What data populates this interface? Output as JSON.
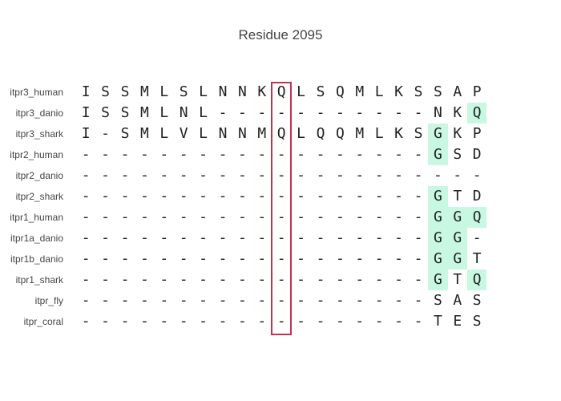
{
  "title": "Residue 2095",
  "highlight_color": "#c8f7e2",
  "box_color": "#c0334f",
  "highlighted_column": 10,
  "sequences": [
    {
      "name": "itpr3_human",
      "residues": [
        "I",
        "S",
        "S",
        "M",
        "L",
        "S",
        "L",
        "N",
        "N",
        "K",
        "Q",
        "L",
        "S",
        "Q",
        "M",
        "L",
        "K",
        "S",
        "S",
        "A",
        "P"
      ],
      "highlight": []
    },
    {
      "name": "itpr3_danio",
      "residues": [
        "I",
        "S",
        "S",
        "M",
        "L",
        "N",
        "L",
        "-",
        "-",
        "-",
        "-",
        "-",
        "-",
        "-",
        "-",
        "-",
        "-",
        "-",
        "N",
        "K",
        "Q"
      ],
      "highlight": [
        20
      ]
    },
    {
      "name": "itpr3_shark",
      "residues": [
        "I",
        "-",
        "S",
        "M",
        "L",
        "V",
        "L",
        "N",
        "N",
        "M",
        "Q",
        "L",
        "Q",
        "Q",
        "M",
        "L",
        "K",
        "S",
        "G",
        "K",
        "P"
      ],
      "highlight": [
        18
      ]
    },
    {
      "name": "itpr2_human",
      "residues": [
        "-",
        "-",
        "-",
        "-",
        "-",
        "-",
        "-",
        "-",
        "-",
        "-",
        "-",
        "-",
        "-",
        "-",
        "-",
        "-",
        "-",
        "-",
        "G",
        "S",
        "D"
      ],
      "highlight": [
        18
      ]
    },
    {
      "name": "itpr2_danio",
      "residues": [
        "-",
        "-",
        "-",
        "-",
        "-",
        "-",
        "-",
        "-",
        "-",
        "-",
        "-",
        "-",
        "-",
        "-",
        "-",
        "-",
        "-",
        "-",
        "-",
        "-",
        "-"
      ],
      "highlight": []
    },
    {
      "name": "itpr2_shark",
      "residues": [
        "-",
        "-",
        "-",
        "-",
        "-",
        "-",
        "-",
        "-",
        "-",
        "-",
        "-",
        "-",
        "-",
        "-",
        "-",
        "-",
        "-",
        "-",
        "G",
        "T",
        "D"
      ],
      "highlight": [
        18
      ]
    },
    {
      "name": "itpr1_human",
      "residues": [
        "-",
        "-",
        "-",
        "-",
        "-",
        "-",
        "-",
        "-",
        "-",
        "-",
        "-",
        "-",
        "-",
        "-",
        "-",
        "-",
        "-",
        "-",
        "G",
        "G",
        "Q"
      ],
      "highlight": [
        18,
        19,
        20
      ]
    },
    {
      "name": "itpr1a_danio",
      "residues": [
        "-",
        "-",
        "-",
        "-",
        "-",
        "-",
        "-",
        "-",
        "-",
        "-",
        "-",
        "-",
        "-",
        "-",
        "-",
        "-",
        "-",
        "-",
        "G",
        "G",
        "-"
      ],
      "highlight": [
        18,
        19
      ]
    },
    {
      "name": "itpr1b_danio",
      "residues": [
        "-",
        "-",
        "-",
        "-",
        "-",
        "-",
        "-",
        "-",
        "-",
        "-",
        "-",
        "-",
        "-",
        "-",
        "-",
        "-",
        "-",
        "-",
        "G",
        "G",
        "T"
      ],
      "highlight": [
        18,
        19
      ]
    },
    {
      "name": "itpr1_shark",
      "residues": [
        "-",
        "-",
        "-",
        "-",
        "-",
        "-",
        "-",
        "-",
        "-",
        "-",
        "-",
        "-",
        "-",
        "-",
        "-",
        "-",
        "-",
        "-",
        "G",
        "T",
        "Q"
      ],
      "highlight": [
        18,
        20
      ]
    },
    {
      "name": "itpr_fly",
      "residues": [
        "-",
        "-",
        "-",
        "-",
        "-",
        "-",
        "-",
        "-",
        "-",
        "-",
        "-",
        "-",
        "-",
        "-",
        "-",
        "-",
        "-",
        "-",
        "S",
        "A",
        "S"
      ],
      "highlight": []
    },
    {
      "name": "itpr_coral",
      "residues": [
        "-",
        "-",
        "-",
        "-",
        "-",
        "-",
        "-",
        "-",
        "-",
        "-",
        "-",
        "-",
        "-",
        "-",
        "-",
        "-",
        "-",
        "-",
        "T",
        "E",
        "S"
      ],
      "highlight": []
    }
  ]
}
